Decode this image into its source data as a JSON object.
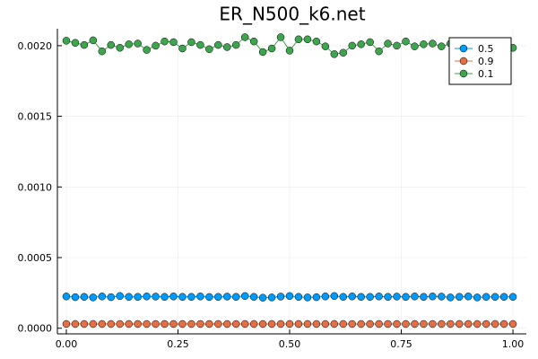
{
  "chart_data": {
    "type": "scatter",
    "title": "ER_N500_k6.net",
    "xlabel": "",
    "ylabel": "",
    "xlim": [
      -0.02,
      1.03
    ],
    "ylim": [
      -4e-05,
      0.00212
    ],
    "x_ticks": [
      0.0,
      0.25,
      0.5,
      0.75,
      1.0
    ],
    "x_tick_labels": [
      "0.00",
      "0.25",
      "0.50",
      "0.75",
      "1.00"
    ],
    "y_ticks": [
      0.0,
      0.0005,
      0.001,
      0.0015,
      0.002
    ],
    "y_tick_labels": [
      "0.0000",
      "0.0005",
      "0.0010",
      "0.0015",
      "0.0020"
    ],
    "grid": true,
    "legend_position": "top-right",
    "x": [
      0.0,
      0.02,
      0.04,
      0.06,
      0.08,
      0.1,
      0.12,
      0.14,
      0.16,
      0.18,
      0.2,
      0.22,
      0.24,
      0.26,
      0.28,
      0.3,
      0.32,
      0.34,
      0.36,
      0.38,
      0.4,
      0.42,
      0.44,
      0.46,
      0.48,
      0.5,
      0.52,
      0.54,
      0.56,
      0.58,
      0.6,
      0.62,
      0.64,
      0.66,
      0.68,
      0.7,
      0.72,
      0.74,
      0.76,
      0.78,
      0.8,
      0.82,
      0.84,
      0.86,
      0.88,
      0.9,
      0.92,
      0.94,
      0.96,
      0.98,
      1.0
    ],
    "series": [
      {
        "name": "0.5",
        "color": "#009AFA",
        "values": [
          0.000225,
          0.00022,
          0.000222,
          0.000218,
          0.000225,
          0.00022,
          0.000228,
          0.000222,
          0.000222,
          0.000225,
          0.000224,
          0.000222,
          0.000225,
          0.000222,
          0.000222,
          0.000225,
          0.000221,
          0.000222,
          0.000224,
          0.000222,
          0.000228,
          0.000222,
          0.000216,
          0.000218,
          0.000224,
          0.000228,
          0.000222,
          0.000218,
          0.00022,
          0.000225,
          0.000228,
          0.000222,
          0.000225,
          0.000222,
          0.000222,
          0.000225,
          0.000222,
          0.000224,
          0.000222,
          0.000225,
          0.000222,
          0.000225,
          0.000224,
          0.000218,
          0.000222,
          0.000225,
          0.000218,
          0.000222,
          0.000222,
          0.000222,
          0.000222
        ]
      },
      {
        "name": "0.9",
        "color": "#E26F46",
        "values": [
          3e-05,
          3e-05,
          3e-05,
          3e-05,
          3e-05,
          3e-05,
          3e-05,
          3e-05,
          3e-05,
          3e-05,
          3e-05,
          3e-05,
          3e-05,
          3e-05,
          3e-05,
          3e-05,
          3e-05,
          3e-05,
          3e-05,
          3e-05,
          3e-05,
          3e-05,
          3e-05,
          3e-05,
          3e-05,
          3e-05,
          3e-05,
          3e-05,
          3e-05,
          3e-05,
          3e-05,
          3e-05,
          3e-05,
          3e-05,
          3e-05,
          3e-05,
          3e-05,
          3e-05,
          3e-05,
          3e-05,
          3e-05,
          3e-05,
          3e-05,
          3e-05,
          3e-05,
          3e-05,
          3e-05,
          3e-05,
          3e-05,
          3e-05,
          3e-05
        ]
      },
      {
        "name": "0.1",
        "color": "#3EA44E",
        "values": [
          0.002035,
          0.00202,
          0.002005,
          0.002038,
          0.00196,
          0.002005,
          0.001985,
          0.00201,
          0.002015,
          0.00197,
          0.002,
          0.00203,
          0.002025,
          0.00198,
          0.002025,
          0.002005,
          0.001975,
          0.002005,
          0.00199,
          0.002005,
          0.00206,
          0.00203,
          0.001955,
          0.00198,
          0.00206,
          0.001965,
          0.002045,
          0.002045,
          0.00203,
          0.001995,
          0.00194,
          0.00195,
          0.002,
          0.00201,
          0.002025,
          0.00196,
          0.002015,
          0.002,
          0.00203,
          0.001995,
          0.00201,
          0.002015,
          0.001995,
          0.002015,
          0.00203,
          0.002015,
          0.00201,
          0.00201,
          0.002005,
          0.00201,
          0.001985
        ]
      }
    ]
  }
}
